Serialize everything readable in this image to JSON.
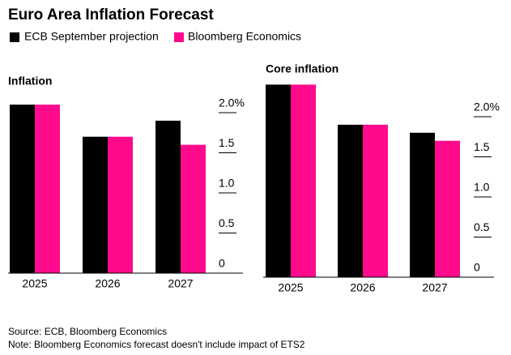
{
  "title": "Euro Area Inflation Forecast",
  "source": "Source: ECB, Bloomberg Economics",
  "note": "Note: Bloomberg Economics forecast doesn't include impact of ETS2",
  "chart_data": [
    {
      "type": "bar",
      "title": "Inflation",
      "categories": [
        "2025",
        "2026",
        "2027"
      ],
      "series": [
        {
          "name": "ECB September projection",
          "color": "#000000",
          "values": [
            2.1,
            1.7,
            1.9
          ]
        },
        {
          "name": "Bloomberg Economics",
          "color": "#ff0a8c",
          "values": [
            2.1,
            1.7,
            1.6
          ]
        }
      ],
      "ylim": [
        0,
        2.4
      ],
      "yticks": [
        0,
        0.5,
        {
          "value": 1,
          "label": "1.0"
        },
        1.5,
        {
          "value": 2,
          "label": "2.0%"
        }
      ]
    },
    {
      "type": "bar",
      "title": "Core inflation",
      "categories": [
        "2025",
        "2026",
        "2027"
      ],
      "series": [
        {
          "name": "ECB September projection",
          "color": "#000000",
          "values": [
            2.4,
            1.9,
            1.8
          ]
        },
        {
          "name": "Bloomberg Economics",
          "color": "#ff0a8c",
          "values": [
            2.4,
            1.9,
            1.7
          ]
        }
      ],
      "ylim": [
        0,
        2.4
      ],
      "yticks": [
        0,
        0.5,
        {
          "value": 1,
          "label": "1.0"
        },
        1.5,
        {
          "value": 2,
          "label": "2.0%"
        }
      ]
    }
  ]
}
